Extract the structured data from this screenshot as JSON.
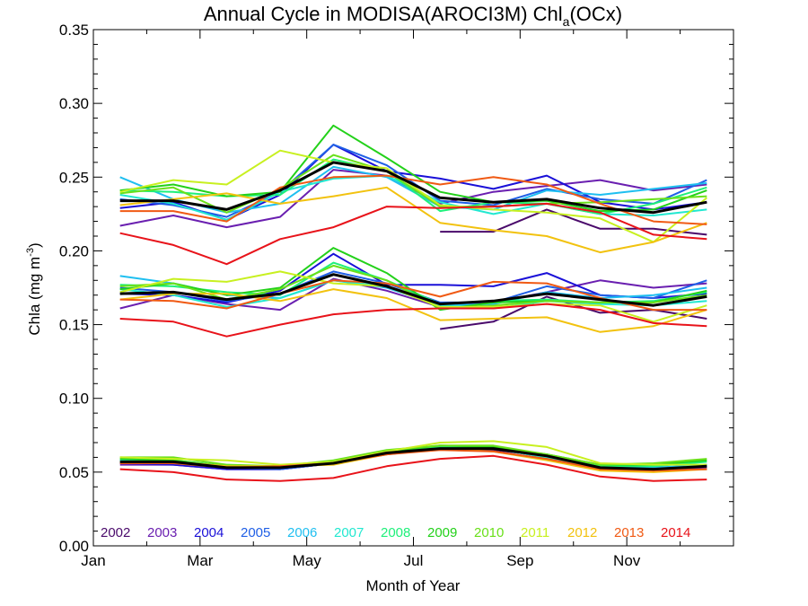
{
  "chart_data": {
    "type": "line",
    "title": "Annual Cycle in MODISA(AROCI3M) Chl",
    "title_sub": "a",
    "title_suffix": "(OCx)",
    "xlabel": "Month of Year",
    "ylabel_prefix": "Chla (mg m",
    "ylabel_sup": "-3",
    "ylabel_suffix": ")",
    "xlim": [
      1,
      13
    ],
    "ylim": [
      0,
      0.35
    ],
    "x_ticks": [
      {
        "month": 1,
        "label": "Jan"
      },
      {
        "month": 3,
        "label": "Mar"
      },
      {
        "month": 5,
        "label": "May"
      },
      {
        "month": 7,
        "label": "Jul"
      },
      {
        "month": 9,
        "label": "Sep"
      },
      {
        "month": 11,
        "label": "Nov"
      }
    ],
    "y_ticks": [
      "0.00",
      "0.05",
      "0.10",
      "0.15",
      "0.20",
      "0.25",
      "0.30",
      "0.35"
    ],
    "legend_position": "bottom-left",
    "x": [
      1.5,
      2.5,
      3.5,
      4.5,
      5.5,
      6.5,
      7.5,
      8.5,
      9.5,
      10.5,
      11.5,
      12.5
    ],
    "series": [
      {
        "name": "2002",
        "color": "#4a0a6b",
        "upper": [
          null,
          null,
          null,
          null,
          null,
          null,
          0.213,
          0.213,
          0.228,
          0.215,
          0.215,
          0.211
        ],
        "middle": [
          null,
          null,
          null,
          null,
          null,
          null,
          0.147,
          0.152,
          0.169,
          0.158,
          0.16,
          0.154
        ],
        "lower": [
          null,
          null,
          null,
          null,
          null,
          null,
          0.066,
          0.065,
          0.061,
          0.053,
          0.052,
          0.052
        ]
      },
      {
        "name": "2003",
        "color": "#6a1fb0",
        "upper": [
          0.217,
          0.224,
          0.216,
          0.223,
          0.255,
          0.251,
          0.232,
          0.24,
          0.244,
          0.248,
          0.241,
          0.245
        ],
        "middle": [
          0.161,
          0.17,
          0.164,
          0.16,
          0.181,
          0.173,
          0.162,
          0.165,
          0.172,
          0.18,
          0.175,
          0.178
        ],
        "lower": [
          0.055,
          0.055,
          0.052,
          0.052,
          0.056,
          0.062,
          0.066,
          0.066,
          0.062,
          0.053,
          0.052,
          0.053
        ]
      },
      {
        "name": "2004",
        "color": "#1a10d8",
        "upper": [
          0.229,
          0.233,
          0.221,
          0.238,
          0.272,
          0.254,
          0.249,
          0.242,
          0.251,
          0.233,
          0.228,
          0.233
        ],
        "middle": [
          0.171,
          0.17,
          0.165,
          0.173,
          0.198,
          0.177,
          0.177,
          0.176,
          0.185,
          0.17,
          0.168,
          0.171
        ],
        "lower": [
          0.056,
          0.055,
          0.052,
          0.052,
          0.056,
          0.063,
          0.066,
          0.066,
          0.06,
          0.053,
          0.052,
          0.054
        ]
      },
      {
        "name": "2005",
        "color": "#1f5fe6",
        "upper": [
          0.235,
          0.231,
          0.223,
          0.24,
          0.272,
          0.258,
          0.234,
          0.231,
          0.242,
          0.235,
          0.232,
          0.248
        ],
        "middle": [
          0.175,
          0.172,
          0.166,
          0.171,
          0.186,
          0.178,
          0.165,
          0.165,
          0.176,
          0.17,
          0.168,
          0.18
        ],
        "lower": [
          0.057,
          0.056,
          0.053,
          0.052,
          0.056,
          0.063,
          0.066,
          0.066,
          0.06,
          0.052,
          0.052,
          0.055
        ]
      },
      {
        "name": "2006",
        "color": "#1fbff0",
        "upper": [
          0.25,
          0.235,
          0.226,
          0.232,
          0.257,
          0.25,
          0.23,
          0.228,
          0.241,
          0.238,
          0.242,
          0.246
        ],
        "middle": [
          0.183,
          0.178,
          0.17,
          0.168,
          0.18,
          0.175,
          0.163,
          0.164,
          0.172,
          0.168,
          0.17,
          0.175
        ],
        "lower": [
          0.058,
          0.057,
          0.053,
          0.053,
          0.056,
          0.064,
          0.067,
          0.066,
          0.061,
          0.053,
          0.053,
          0.055
        ]
      },
      {
        "name": "2007",
        "color": "#22e8d0",
        "upper": [
          0.238,
          0.232,
          0.221,
          0.24,
          0.249,
          0.251,
          0.233,
          0.225,
          0.232,
          0.225,
          0.224,
          0.228
        ],
        "middle": [
          0.174,
          0.17,
          0.162,
          0.168,
          0.18,
          0.176,
          0.163,
          0.161,
          0.166,
          0.164,
          0.163,
          0.166
        ],
        "lower": [
          0.058,
          0.057,
          0.053,
          0.053,
          0.057,
          0.064,
          0.067,
          0.066,
          0.06,
          0.053,
          0.052,
          0.054
        ]
      },
      {
        "name": "2008",
        "color": "#1ef07a",
        "upper": [
          0.241,
          0.24,
          0.237,
          0.238,
          0.262,
          0.254,
          0.227,
          0.233,
          0.232,
          0.225,
          0.232,
          0.243
        ],
        "middle": [
          0.177,
          0.176,
          0.172,
          0.17,
          0.192,
          0.18,
          0.164,
          0.166,
          0.167,
          0.165,
          0.166,
          0.172
        ],
        "lower": [
          0.059,
          0.058,
          0.054,
          0.053,
          0.056,
          0.064,
          0.067,
          0.066,
          0.061,
          0.054,
          0.054,
          0.057
        ]
      },
      {
        "name": "2009",
        "color": "#23d11a",
        "upper": [
          0.241,
          0.245,
          0.237,
          0.24,
          0.285,
          0.263,
          0.24,
          0.233,
          0.234,
          0.227,
          0.228,
          0.241
        ],
        "middle": [
          0.174,
          0.178,
          0.17,
          0.175,
          0.202,
          0.185,
          0.16,
          0.165,
          0.166,
          0.165,
          0.165,
          0.173
        ],
        "lower": [
          0.059,
          0.058,
          0.054,
          0.053,
          0.057,
          0.064,
          0.068,
          0.067,
          0.062,
          0.055,
          0.055,
          0.058
        ]
      },
      {
        "name": "2010",
        "color": "#6ae01a",
        "upper": [
          0.239,
          0.243,
          0.226,
          0.242,
          0.265,
          0.254,
          0.23,
          0.23,
          0.232,
          0.233,
          0.235,
          0.237
        ],
        "middle": [
          0.176,
          0.178,
          0.167,
          0.174,
          0.19,
          0.18,
          0.161,
          0.163,
          0.166,
          0.165,
          0.165,
          0.17
        ],
        "lower": [
          0.06,
          0.06,
          0.055,
          0.054,
          0.058,
          0.065,
          0.068,
          0.068,
          0.062,
          0.055,
          0.056,
          0.059
        ]
      },
      {
        "name": "2011",
        "color": "#c8f020",
        "upper": [
          0.24,
          0.248,
          0.245,
          0.268,
          0.26,
          0.256,
          0.231,
          0.228,
          0.226,
          0.222,
          0.206,
          0.236
        ],
        "middle": [
          0.172,
          0.181,
          0.179,
          0.186,
          0.178,
          0.176,
          0.162,
          0.162,
          0.164,
          0.163,
          0.152,
          0.163
        ],
        "lower": [
          0.06,
          0.059,
          0.058,
          0.055,
          0.057,
          0.064,
          0.07,
          0.071,
          0.067,
          0.056,
          0.055,
          0.055
        ]
      },
      {
        "name": "2012",
        "color": "#f2c20f",
        "upper": [
          0.231,
          0.235,
          0.239,
          0.232,
          0.237,
          0.243,
          0.219,
          0.214,
          0.21,
          0.199,
          0.206,
          0.219
        ],
        "middle": [
          0.167,
          0.171,
          0.171,
          0.166,
          0.174,
          0.168,
          0.153,
          0.154,
          0.155,
          0.145,
          0.149,
          0.16
        ],
        "lower": [
          0.057,
          0.057,
          0.054,
          0.054,
          0.055,
          0.062,
          0.066,
          0.064,
          0.058,
          0.051,
          0.05,
          0.052
        ]
      },
      {
        "name": "2013",
        "color": "#f05a14",
        "upper": [
          0.227,
          0.227,
          0.22,
          0.243,
          0.25,
          0.251,
          0.245,
          0.25,
          0.245,
          0.232,
          0.22,
          0.218
        ],
        "middle": [
          0.167,
          0.166,
          0.161,
          0.171,
          0.18,
          0.178,
          0.169,
          0.179,
          0.178,
          0.168,
          0.16,
          0.16
        ],
        "lower": [
          0.056,
          0.056,
          0.053,
          0.054,
          0.056,
          0.062,
          0.065,
          0.064,
          0.059,
          0.052,
          0.051,
          0.052
        ]
      },
      {
        "name": "2014",
        "color": "#e8131a",
        "upper": [
          0.212,
          0.204,
          0.191,
          0.208,
          0.216,
          0.23,
          0.229,
          0.23,
          0.232,
          0.226,
          0.211,
          0.208
        ],
        "middle": [
          0.154,
          0.152,
          0.142,
          0.15,
          0.157,
          0.16,
          0.161,
          0.161,
          0.164,
          0.16,
          0.151,
          0.149
        ],
        "lower": [
          0.052,
          0.05,
          0.045,
          0.044,
          0.046,
          0.054,
          0.059,
          0.061,
          0.055,
          0.047,
          0.044,
          0.045
        ]
      }
    ],
    "mean": {
      "color": "#000000",
      "upper": [
        0.234,
        0.234,
        0.228,
        0.241,
        0.26,
        0.254,
        0.236,
        0.233,
        0.235,
        0.229,
        0.226,
        0.233
      ],
      "middle": [
        0.171,
        0.172,
        0.167,
        0.171,
        0.184,
        0.176,
        0.164,
        0.166,
        0.171,
        0.167,
        0.163,
        0.169
      ],
      "lower": [
        0.057,
        0.057,
        0.053,
        0.053,
        0.056,
        0.063,
        0.066,
        0.066,
        0.061,
        0.053,
        0.052,
        0.054
      ]
    }
  }
}
